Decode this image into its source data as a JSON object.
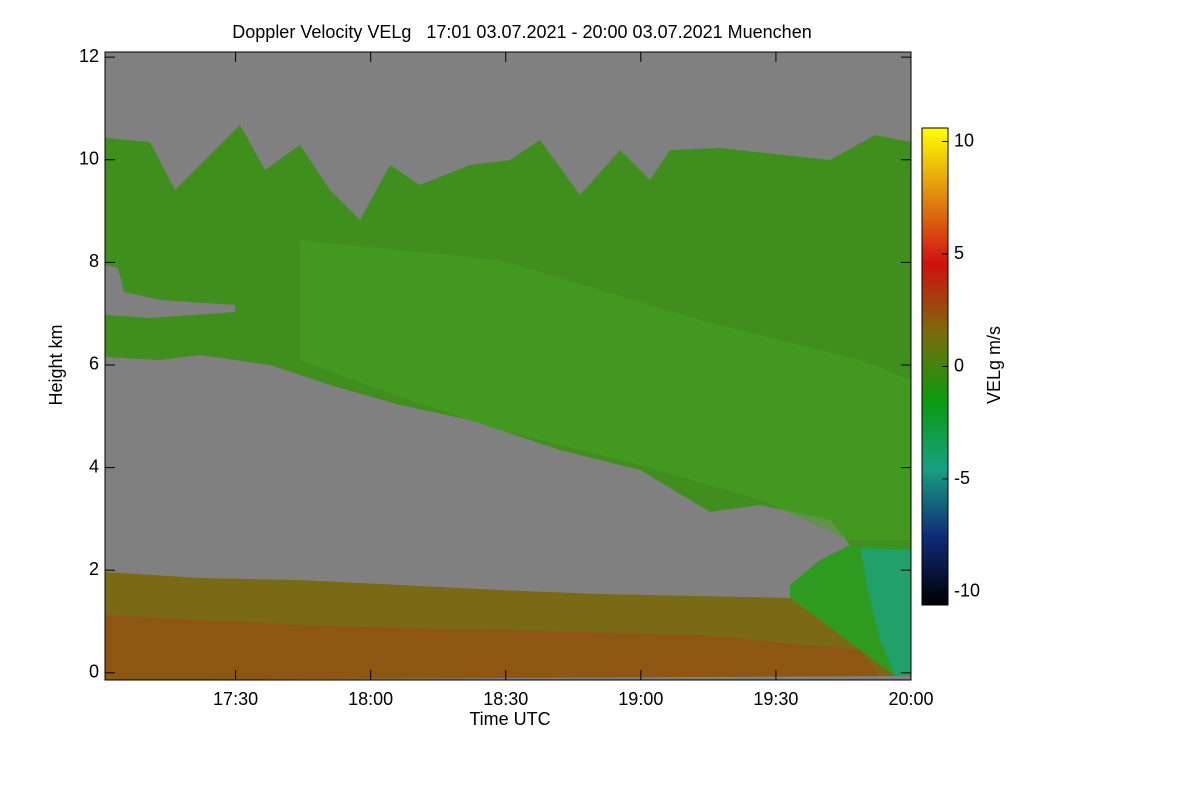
{
  "chart_data": {
    "type": "heatmap",
    "title": "Doppler Velocity VELg   17:01 03.07.2021 - 20:00 03.07.2021 Muenchen",
    "xlabel": "Time UTC",
    "ylabel": "Height km",
    "colorbar_label": "VELg m/s",
    "xlim": [
      1021,
      1200
    ],
    "xticks": [
      {
        "value": 1050,
        "label": "17:30"
      },
      {
        "value": 1080,
        "label": "18:00"
      },
      {
        "value": 1110,
        "label": "18:30"
      },
      {
        "value": 1140,
        "label": "19:00"
      },
      {
        "value": 1170,
        "label": "19:30"
      },
      {
        "value": 1200,
        "label": "20:00"
      }
    ],
    "ylim": [
      -0.14,
      12.1
    ],
    "yticks": [
      0,
      2,
      4,
      6,
      8,
      10,
      12
    ],
    "clim": [
      -10.6,
      10.6
    ],
    "cticks": [
      -10,
      -5,
      0,
      5,
      10
    ],
    "colormap": [
      "#000000",
      "#102a78",
      "#18a080",
      "#0c9a10",
      "#7a6c0c",
      "#d01010",
      "#e08a10",
      "#ffff00"
    ],
    "missing_color": "#808080"
  }
}
